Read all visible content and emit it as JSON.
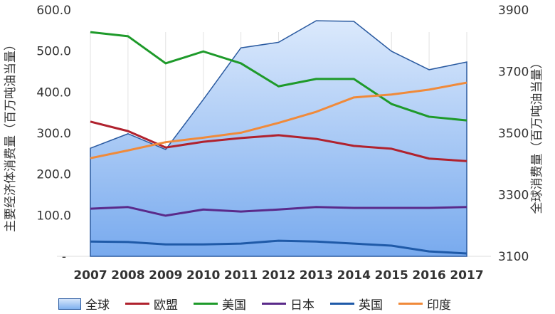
{
  "chart_data": {
    "type": "line",
    "x": [
      "2007",
      "2008",
      "2009",
      "2010",
      "2011",
      "2012",
      "2013",
      "2014",
      "2015",
      "2016",
      "2017"
    ],
    "left_axis": {
      "label": "主要经济体消费量（百万吨油当量）",
      "ylim": [
        0,
        600
      ],
      "ticks": [
        "-",
        "100.0",
        "200.0",
        "300.0",
        "400.0",
        "500.0",
        "600.0"
      ]
    },
    "right_axis": {
      "label": "全球消费量（百万吨油当量）",
      "ylim": [
        3100,
        3900
      ],
      "ticks": [
        "3100",
        "3300",
        "3500",
        "3700",
        "3900"
      ]
    },
    "grid": "vertical",
    "legend_position": "bottom",
    "series": [
      {
        "name": "全球",
        "type": "area",
        "axis": "right",
        "color": "#2a5aa0",
        "values": [
          3451,
          3498,
          3447,
          3609,
          3777,
          3795,
          3865,
          3863,
          3766,
          3706,
          3731
        ]
      },
      {
        "name": "欧盟",
        "axis": "left",
        "color": "#b0222e",
        "values": [
          328,
          305,
          265,
          279,
          288,
          295,
          286,
          269,
          262,
          238,
          232
        ]
      },
      {
        "name": "美国",
        "axis": "left",
        "color": "#1e9a2a",
        "values": [
          546,
          536,
          470,
          499,
          470,
          414,
          432,
          432,
          371,
          340,
          331
        ]
      },
      {
        "name": "日本",
        "axis": "left",
        "color": "#5a2a8a",
        "values": [
          116,
          120,
          99,
          114,
          109,
          114,
          120,
          118,
          118,
          118,
          120
        ]
      },
      {
        "name": "英国",
        "axis": "left",
        "color": "#1f5aa8",
        "values": [
          36,
          35,
          29,
          29,
          31,
          38,
          36,
          31,
          26,
          12,
          7
        ]
      },
      {
        "name": "印度",
        "axis": "left",
        "color": "#f08a3a",
        "values": [
          239,
          258,
          278,
          289,
          301,
          325,
          352,
          387,
          394,
          406,
          423
        ]
      }
    ]
  }
}
